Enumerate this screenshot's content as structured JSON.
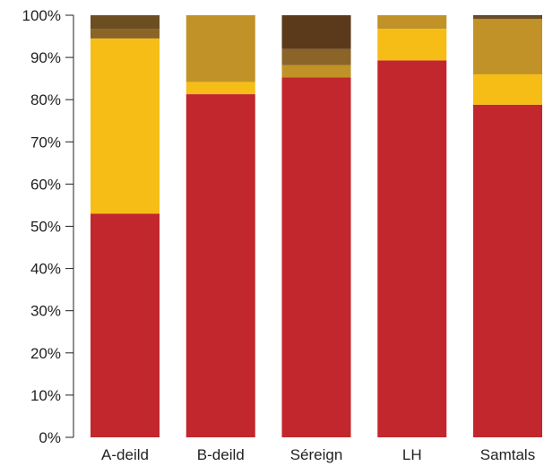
{
  "chart_data": {
    "type": "bar",
    "stacked": true,
    "normalized": true,
    "categories": [
      "A-deild",
      "B-deild",
      "Séreign",
      "LH",
      "Samtals"
    ],
    "series": [
      {
        "color": "#c1272d",
        "values": [
          53.0,
          81.3,
          85.3,
          89.3,
          78.8
        ]
      },
      {
        "color": "#f6bd16",
        "values": [
          41.5,
          2.9,
          0.0,
          7.5,
          7.2
        ]
      },
      {
        "color": "#c09227",
        "values": [
          0.0,
          15.8,
          2.9,
          3.2,
          13.1
        ]
      },
      {
        "color": "#8b6428",
        "values": [
          2.3,
          0.0,
          3.8,
          0.0,
          0.0
        ]
      },
      {
        "color": "#6b4e22",
        "values": [
          3.2,
          0.0,
          0.0,
          0.0,
          0.5
        ]
      },
      {
        "color": "#5a3a1a",
        "values": [
          0.0,
          0.0,
          8.0,
          0.0,
          0.4
        ]
      }
    ],
    "yticks": [
      "0%",
      "10%",
      "20%",
      "30%",
      "40%",
      "50%",
      "60%",
      "70%",
      "80%",
      "90%",
      "100%"
    ],
    "ylim": [
      0,
      100
    ],
    "grid": false,
    "legend": "none"
  }
}
